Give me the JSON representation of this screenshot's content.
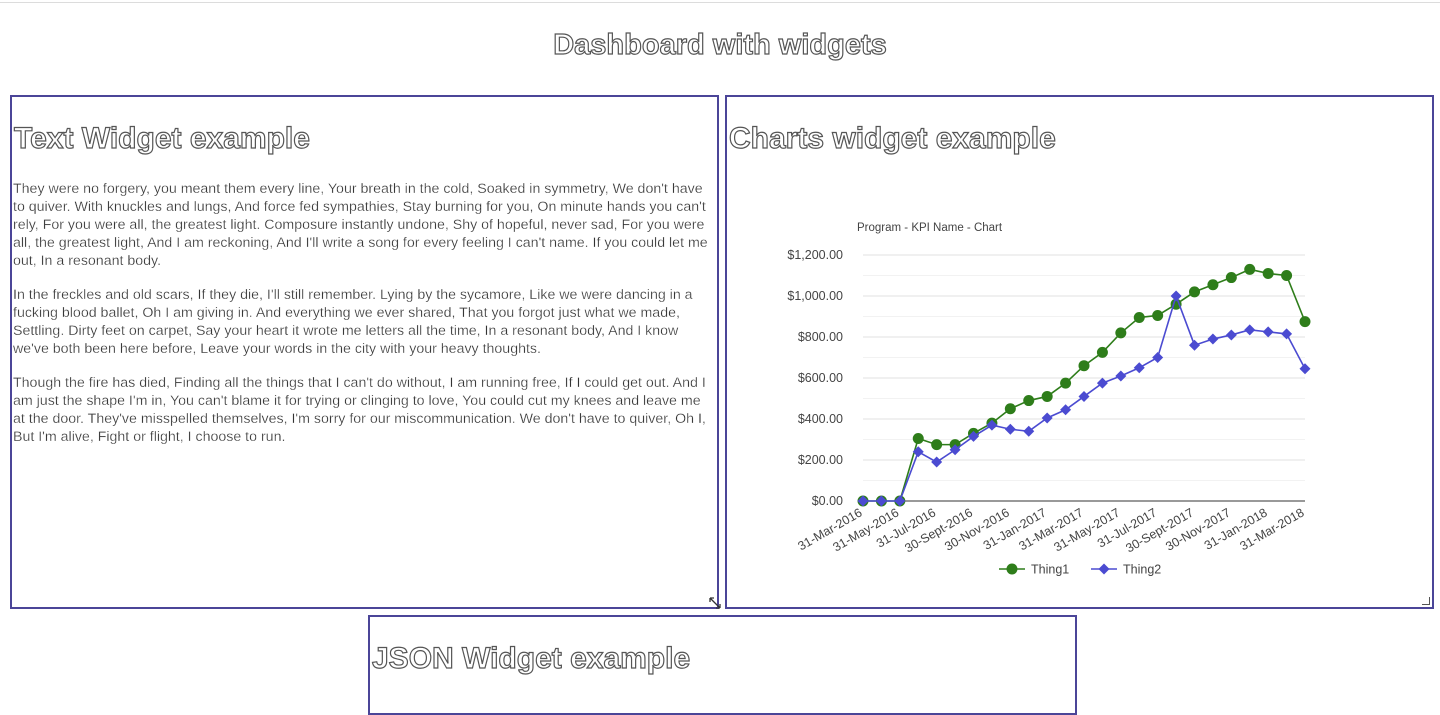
{
  "page": {
    "title": "Dashboard with widgets"
  },
  "text_widget": {
    "title": "Text Widget example",
    "paragraphs": [
      "They were no forgery, you meant them every line, Your breath in the cold, Soaked in symmetry, We don't have to quiver. With knuckles and lungs, And force fed sympathies, Stay burning for you, On minute hands you can't rely, For you were all, the greatest light. Composure instantly undone, Shy of hopeful, never sad, For you were all, the greatest light, And I am reckoning, And I'll write a song for every feeling I can't name. If you could let me out, In a resonant body.",
      "In the freckles and old scars, If they die, I'll still remember. Lying by the sycamore, Like we were dancing in a fucking blood ballet, Oh I am giving in. And everything we ever shared, That you forgot just what we made, Settling. Dirty feet on carpet, Say your heart it wrote me letters all the time, In a resonant body, And I know we've both been here before, Leave your words in the city with your heavy thoughts.",
      "Though the fire has died, Finding all the things that I can't do without, I am running free, If I could get out. And I am just the shape I'm in, You can't blame it for trying or clinging to love, You could cut my knees and leave me at the door. They've misspelled themselves, I'm sorry for our miscommunication. We don't have to quiver, Oh I, But I'm alive, Fight or flight, I choose to run."
    ]
  },
  "chart_widget": {
    "title": "Charts widget example"
  },
  "json_widget": {
    "title": "JSON Widget example"
  },
  "chart_data": {
    "type": "line",
    "title": "Program - KPI Name - Chart",
    "xlabel": "",
    "ylabel": "",
    "ylim": [
      0,
      1200
    ],
    "yticks": [
      "$0.00",
      "$200.00",
      "$400.00",
      "$600.00",
      "$800.00",
      "$1,000.00",
      "$1,200.00"
    ],
    "ytick_values": [
      0,
      200,
      400,
      600,
      800,
      1000,
      1200
    ],
    "grid": true,
    "legend_position": "bottom",
    "x_tick_labels": [
      "31-Mar-2016",
      "31-May-2016",
      "31-Jul-2016",
      "30-Sept-2016",
      "30-Nov-2016",
      "31-Jan-2017",
      "31-Mar-2017",
      "31-May-2017",
      "31-Jul-2017",
      "30-Sept-2017",
      "30-Nov-2017",
      "31-Jan-2018",
      "31-Mar-2018"
    ],
    "series": [
      {
        "name": "Thing1",
        "color": "#2e7d1a",
        "marker": "circle",
        "values": [
          0,
          0,
          0,
          305,
          275,
          275,
          330,
          380,
          450,
          490,
          510,
          575,
          660,
          725,
          820,
          895,
          905,
          960,
          1020,
          1055,
          1090,
          1130,
          1110,
          1100,
          875
        ]
      },
      {
        "name": "Thing2",
        "color": "#4b4bd1",
        "marker": "diamond",
        "values": [
          0,
          0,
          0,
          240,
          190,
          250,
          315,
          370,
          350,
          340,
          405,
          445,
          510,
          575,
          610,
          650,
          700,
          1000,
          760,
          790,
          810,
          835,
          825,
          815,
          645
        ]
      }
    ]
  }
}
